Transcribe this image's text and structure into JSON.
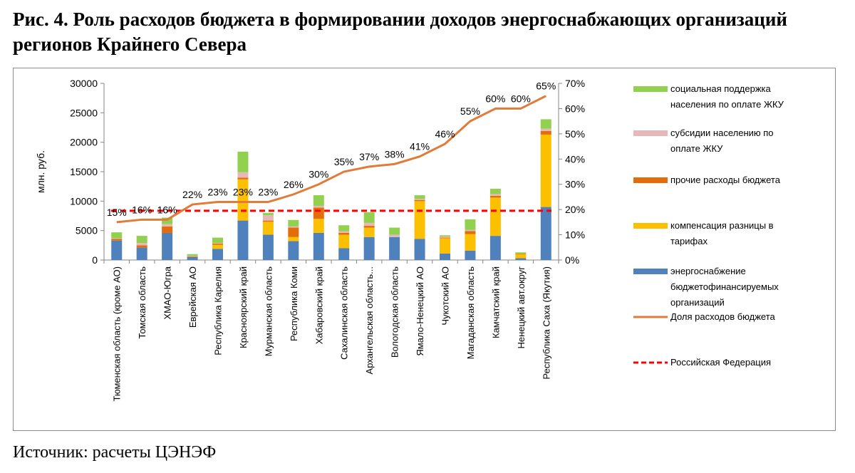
{
  "title": "Рис. 4. Роль расходов бюджета в формировании доходов энергоснабжающих организаций регионов Крайнего Севера",
  "source": "Источник: расчеты ЦЭНЭФ",
  "chart_data": {
    "type": "bar",
    "stacked": true,
    "ylabel": "млн. руб.",
    "ylim": [
      0,
      30000
    ],
    "y_ticks": [
      "0",
      "5000",
      "10000",
      "15000",
      "20000",
      "25000",
      "30000"
    ],
    "y2lim": [
      0,
      0.7
    ],
    "y2_ticks": [
      "0%",
      "10%",
      "20%",
      "30%",
      "40%",
      "50%",
      "60%",
      "70%"
    ],
    "grid": false,
    "legend_position": "right",
    "categories": [
      "Тюменская область (кроме АО)",
      "Томская область",
      "ХМАО-Югра",
      "Еврейская АО",
      "Республика Карелия",
      "Красноярский край",
      "Мурманская область",
      "Республика Коми",
      "Хабаровский край",
      "Сахалинская область",
      "Архангельская область...",
      "Вологодская область",
      "Ямало-Ненецкий АО",
      "Чукотский АО",
      "Магаданская область",
      "Камчатский край",
      "Ненецкий авт.округ",
      "Республика Саха (Якутия)"
    ],
    "series": [
      {
        "name": "энергоснабжение бюджетофинансируемых организаций",
        "color": "#4f81bd",
        "values": [
          3300,
          2100,
          4600,
          500,
          1900,
          6700,
          4300,
          3200,
          4600,
          2000,
          3900,
          3900,
          3600,
          1100,
          1600,
          4100,
          300,
          9000
        ]
      },
      {
        "name": "компенсация разницы в тарифах",
        "color": "#fcc000",
        "values": [
          0,
          0,
          0,
          0,
          700,
          7000,
          2200,
          700,
          2400,
          2300,
          1600,
          0,
          6400,
          2600,
          2800,
          6500,
          700,
          12300
        ]
      },
      {
        "name": "прочие расходы бюджета",
        "color": "#e46c0a",
        "values": [
          300,
          400,
          1100,
          100,
          200,
          300,
          200,
          1600,
          1900,
          300,
          300,
          0,
          200,
          100,
          500,
          300,
          100,
          600
        ]
      },
      {
        "name": "субсидии населению по оплате ЖКУ",
        "color": "#e6b9b8",
        "values": [
          100,
          400,
          400,
          100,
          100,
          900,
          900,
          200,
          300,
          300,
          500,
          400,
          200,
          200,
          200,
          300,
          0,
          400
        ]
      },
      {
        "name": "социальная поддержка населения по оплате ЖКУ",
        "color": "#92d050",
        "values": [
          1000,
          1200,
          1100,
          300,
          900,
          3500,
          400,
          1100,
          1800,
          1000,
          1800,
          1200,
          600,
          200,
          1800,
          900,
          200,
          1600
        ]
      }
    ],
    "line_series": [
      {
        "name": "Доля расходов бюджета",
        "color": "#e07b39",
        "axis": "secondary",
        "values": [
          0.15,
          0.16,
          0.16,
          0.22,
          0.23,
          0.23,
          0.23,
          0.26,
          0.3,
          0.35,
          0.37,
          0.38,
          0.41,
          0.46,
          0.55,
          0.6,
          0.6,
          0.65
        ],
        "labels": [
          "15%",
          "16%",
          "16%",
          "22%",
          "23%",
          "23%",
          "23%",
          "26%",
          "30%",
          "35%",
          "37%",
          "38%",
          "41%",
          "46%",
          "55%",
          "60%",
          "60%",
          "65%"
        ]
      },
      {
        "name": "Российская Федерация",
        "color": "#ff0000",
        "axis": "secondary",
        "dashed": true,
        "value": 0.195
      }
    ],
    "legend_order": [
      "социальная поддержка населения по оплате ЖКУ",
      "субсидии населению по оплате ЖКУ",
      "прочие расходы бюджета",
      "компенсация разницы в тарифах",
      "энергоснабжение бюджетофинансируемых организаций",
      "Доля расходов бюджета",
      "Российская Федерация"
    ]
  }
}
